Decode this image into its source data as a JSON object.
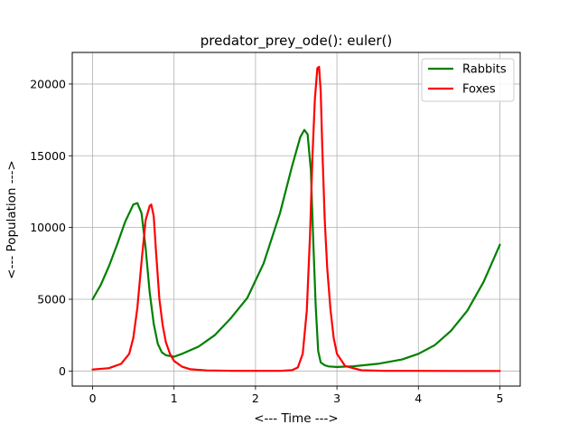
{
  "chart_data": {
    "type": "line",
    "title": "predator_prey_ode(): euler()",
    "xlabel": "<--- Time --->",
    "ylabel": "<--- Population --->",
    "xlim": [
      -0.25,
      5.25
    ],
    "ylim": [
      -1050,
      22200
    ],
    "xticks": [
      0,
      1,
      2,
      3,
      4,
      5
    ],
    "xtick_labels": [
      "0",
      "1",
      "2",
      "3",
      "4",
      "5"
    ],
    "yticks": [
      0,
      5000,
      10000,
      15000,
      20000
    ],
    "ytick_labels": [
      "0",
      "5000",
      "10000",
      "15000",
      "20000"
    ],
    "grid": true,
    "legend_position": "upper right",
    "series": [
      {
        "name": "Rabbits",
        "color": "#008000",
        "x": [
          0,
          0.1,
          0.2,
          0.3,
          0.4,
          0.5,
          0.55,
          0.6,
          0.65,
          0.7,
          0.75,
          0.8,
          0.85,
          0.9,
          1.0,
          1.1,
          1.3,
          1.5,
          1.7,
          1.9,
          2.1,
          2.3,
          2.45,
          2.55,
          2.6,
          2.64,
          2.68,
          2.71,
          2.74,
          2.77,
          2.8,
          2.85,
          2.9,
          3.0,
          3.2,
          3.5,
          3.8,
          4.0,
          4.2,
          4.4,
          4.6,
          4.8,
          5.0
        ],
        "y": [
          5000,
          6000,
          7300,
          8800,
          10400,
          11600,
          11700,
          11000,
          8600,
          5500,
          3300,
          1900,
          1300,
          1100,
          1000,
          1200,
          1700,
          2500,
          3700,
          5100,
          7500,
          11000,
          14300,
          16300,
          16800,
          16500,
          14000,
          9000,
          4500,
          1400,
          600,
          400,
          320,
          280,
          330,
          500,
          800,
          1200,
          1800,
          2800,
          4200,
          6200,
          8800
        ]
      },
      {
        "name": "Foxes",
        "color": "#ff0000",
        "x": [
          0,
          0.2,
          0.35,
          0.45,
          0.5,
          0.55,
          0.6,
          0.65,
          0.7,
          0.72,
          0.75,
          0.78,
          0.82,
          0.86,
          0.9,
          0.95,
          1.0,
          1.1,
          1.2,
          1.4,
          1.7,
          2.0,
          2.3,
          2.45,
          2.52,
          2.58,
          2.63,
          2.67,
          2.7,
          2.73,
          2.76,
          2.78,
          2.8,
          2.82,
          2.85,
          2.88,
          2.92,
          2.96,
          3.0,
          3.1,
          3.3,
          3.6,
          4.0,
          4.5,
          5.0
        ],
        "y": [
          100,
          200,
          500,
          1200,
          2300,
          4400,
          7600,
          10500,
          11500,
          11600,
          10800,
          8200,
          5000,
          3200,
          2000,
          1200,
          700,
          300,
          120,
          40,
          12,
          6,
          10,
          60,
          250,
          1200,
          4200,
          9500,
          15000,
          19000,
          21100,
          21200,
          19500,
          15500,
          10500,
          7200,
          4300,
          2300,
          1200,
          350,
          50,
          10,
          6,
          5,
          5
        ]
      }
    ]
  }
}
